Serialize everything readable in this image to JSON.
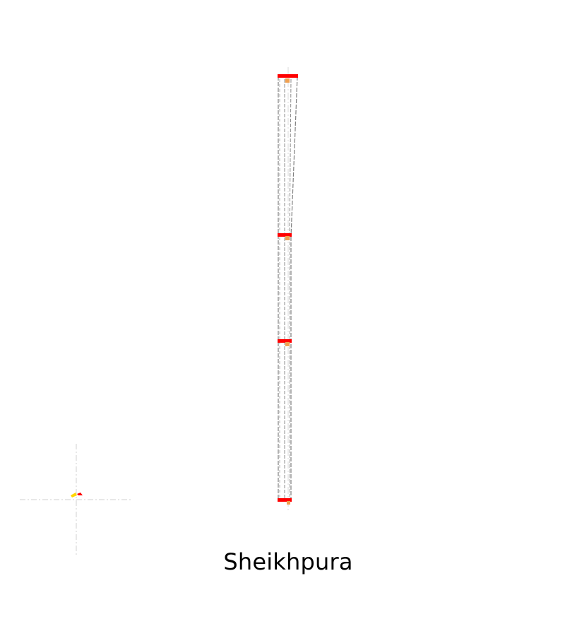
{
  "caption": "Sheikhpura",
  "colors": {
    "structure_line": "#808080",
    "guide_line": "#c8c8c8",
    "support_mark": "#ff0000",
    "node_mark": "#f0a050",
    "origin_x_axis": "#ff0000",
    "origin_y_axis": "#ffd700"
  },
  "icons": {
    "origin": "coordinate-axes-icon"
  }
}
